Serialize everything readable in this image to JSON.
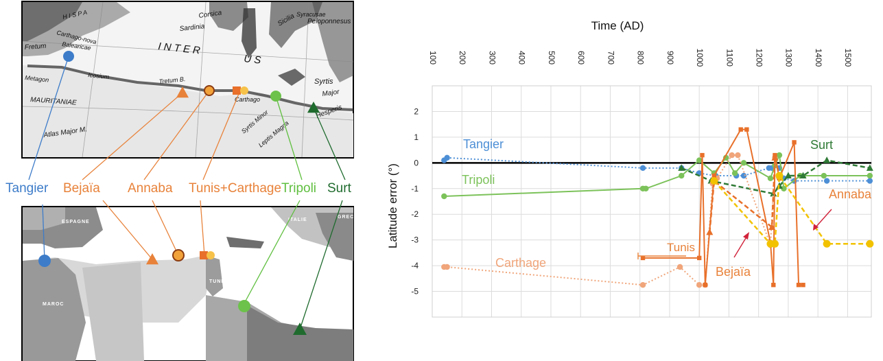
{
  "maps": {
    "historic_labels": [
      {
        "text": "Corsica"
      },
      {
        "text": "H I S P A"
      },
      {
        "text": "Sardinia"
      },
      {
        "text": "Carthago-nova"
      },
      {
        "text": "Fretum"
      },
      {
        "text": "Balearicae"
      },
      {
        "text": "Metagon"
      },
      {
        "text": "Icosium"
      },
      {
        "text": "I N T E R"
      },
      {
        "text": "Tretum B."
      },
      {
        "text": "MAURITANIAE"
      },
      {
        "text": "Carthago"
      },
      {
        "text": "Sicilia"
      },
      {
        "text": "Peloponnesus"
      },
      {
        "text": "Syrtis"
      },
      {
        "text": "Major"
      },
      {
        "text": "Atlas Major M."
      },
      {
        "text": "Syrtis Minor"
      },
      {
        "text": "Leptis Magna"
      },
      {
        "text": "Hesperis"
      },
      {
        "text": "Syracusae"
      },
      {
        "text": "U S"
      }
    ],
    "modern_labels": [
      {
        "text": "ESPAGNE"
      },
      {
        "text": "ITALIE"
      },
      {
        "text": "GREC"
      },
      {
        "text": "TUNISIE"
      },
      {
        "text": "MAROC"
      }
    ],
    "city_labels": [
      {
        "text": "Tangier",
        "color": "#3d7cc9"
      },
      {
        "text": "Bejaïa",
        "color": "#e8823a"
      },
      {
        "text": "Annaba",
        "color": "#e8823a"
      },
      {
        "text": "Tunis+Carthage",
        "color": "#e8823a"
      },
      {
        "text": "Tripoli",
        "color": "#5fbf3f"
      },
      {
        "text": "Surt",
        "color": "#1f6b2e"
      }
    ]
  },
  "chart_data": {
    "type": "line",
    "title": "Time (AD)",
    "xlabel": "Time (AD)",
    "ylabel": "Latitude error (°)",
    "xlim": [
      100,
      1580
    ],
    "ylim": [
      -6,
      3
    ],
    "xticks": [
      "100",
      "200",
      "300",
      "400",
      "500",
      "600",
      "700",
      "800",
      "900",
      "1000",
      "1100",
      "1200",
      "1300",
      "1400",
      "1500"
    ],
    "yticks": [
      "2",
      "1",
      "0",
      "-1",
      "-2",
      "-3",
      "-4",
      "-5"
    ],
    "grid": true,
    "series": [
      {
        "name": "Tangier",
        "color": "#4d8fd6",
        "style": "dotted",
        "marker": "circle",
        "x": [
          140,
          150,
          810,
          940,
          1000,
          1055,
          1125,
          1150,
          1235,
          1245,
          1270,
          1285,
          1320,
          1430,
          1575
        ],
        "y": [
          0.1,
          0.2,
          -0.2,
          -0.2,
          -0.4,
          -0.5,
          -0.5,
          -0.5,
          -0.2,
          -0.2,
          -0.2,
          -0.6,
          -0.7,
          -0.7,
          -0.7
        ]
      },
      {
        "name": "Tripoli",
        "color": "#7cc25a",
        "style": "solid",
        "marker": "circle",
        "x": [
          140,
          810,
          820,
          940,
          1000,
          1050,
          1090,
          1120,
          1150,
          1240,
          1255,
          1270,
          1285,
          1340,
          1420,
          1575
        ],
        "y": [
          -1.3,
          -1.0,
          -1.0,
          -0.5,
          0.1,
          -0.4,
          0.2,
          -0.4,
          0.0,
          -0.6,
          -0.1,
          0.3,
          -1.0,
          -0.5,
          -0.5,
          -0.5
        ]
      },
      {
        "name": "Surt",
        "color": "#2f7a36",
        "style": "dashed",
        "marker": "triangle",
        "x": [
          940,
          1040,
          1250,
          1270,
          1300,
          1350,
          1430,
          1575
        ],
        "y": [
          -0.2,
          -0.7,
          -1.2,
          -0.9,
          -0.5,
          -0.5,
          0.1,
          -0.2
        ]
      },
      {
        "name": "Carthage",
        "color": "#f0a57a",
        "style": "dotted",
        "marker": "circle",
        "x": [
          140,
          150,
          810,
          935,
          1000,
          1020,
          1045,
          1060,
          1110,
          1130,
          1240,
          1255,
          1270
        ],
        "y": [
          -4.05,
          -4.05,
          -4.75,
          -4.05,
          -4.75,
          -4.75,
          -0.8,
          -0.6,
          0.3,
          0.3,
          -3.2,
          0.2,
          -0.6
        ]
      },
      {
        "name": "Tunis",
        "color": "#e8702a",
        "style": "solid",
        "marker": "square",
        "x": [
          810,
          1000,
          1010,
          1020,
          1050,
          1140,
          1160,
          1240,
          1250,
          1255,
          1270,
          1320,
          1335,
          1350
        ],
        "y": [
          -3.7,
          -3.7,
          0.3,
          -4.75,
          -0.5,
          1.3,
          1.3,
          -3.1,
          -4.75,
          0.3,
          -0.6,
          0.8,
          -4.75,
          -4.75
        ]
      },
      {
        "name": "Bejaïa",
        "color": "#e8702a",
        "style": "dashed",
        "marker": "triangle",
        "x": [
          1035,
          1050,
          1245,
          1255,
          1270
        ],
        "y": [
          -2.7,
          -0.7,
          -2.5,
          0.2,
          -0.5
        ]
      },
      {
        "name": "Annaba",
        "color": "#f2c200",
        "style": "dashed",
        "marker": "circle",
        "x": [
          1050,
          1240,
          1255,
          1270,
          1430,
          1575
        ],
        "y": [
          -0.7,
          -3.15,
          -3.15,
          -0.5,
          -3.15,
          -3.15
        ]
      }
    ],
    "annotations": [
      {
        "text": "Tangier",
        "color": "#4d8fd6"
      },
      {
        "text": "Tripoli",
        "color": "#7cc25a"
      },
      {
        "text": "Surt",
        "color": "#2f7a36"
      },
      {
        "text": "Annaba",
        "color": "#e8823a"
      },
      {
        "text": "Tunis",
        "color": "#e8823a"
      },
      {
        "text": "Bejaïa",
        "color": "#e8823a"
      },
      {
        "text": "Carthage",
        "color": "#f0a57a"
      }
    ]
  }
}
